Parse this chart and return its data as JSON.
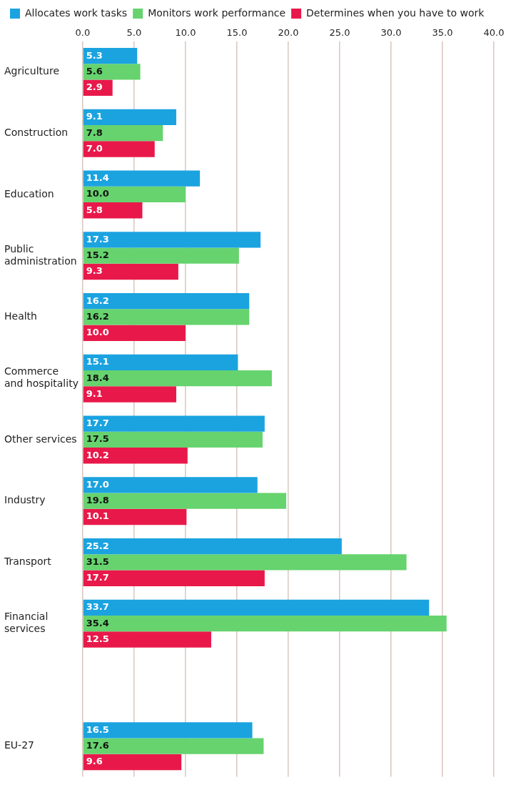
{
  "chart_data": {
    "type": "bar",
    "orientation": "horizontal",
    "legend": "top",
    "grid": "x",
    "categories": [
      "Agriculture",
      "Construction",
      "Education",
      "Public administration",
      "Health",
      "Commerce and hospitality",
      "Other services",
      "Industry",
      "Transport",
      "Financial services",
      null,
      "EU-27"
    ],
    "xlim": [
      0,
      40
    ],
    "xticks": [
      {
        "value": 0,
        "label": "0.0"
      },
      {
        "value": 5,
        "label": "5.0"
      },
      {
        "value": 10,
        "label": "10.0"
      },
      {
        "value": 15,
        "label": "15.0"
      },
      {
        "value": 20,
        "label": "20.0"
      },
      {
        "value": 25,
        "label": "25.0"
      },
      {
        "value": 30,
        "label": "30.0"
      },
      {
        "value": 35,
        "label": "35.0"
      },
      {
        "value": 40,
        "label": "40.0"
      }
    ],
    "series": [
      {
        "name": "Allocates work tasks",
        "color": "#1ba3e0",
        "values": [
          5.3,
          9.1,
          11.4,
          17.3,
          16.2,
          15.1,
          17.7,
          17.0,
          25.2,
          33.7,
          null,
          16.5
        ],
        "value_labels": [
          "5.3",
          "9.1",
          "11.4",
          "17.3",
          "16.2",
          "15.1",
          "17.7",
          "17.0",
          "25.2",
          "33.7",
          null,
          "16.5"
        ]
      },
      {
        "name": "Monitors work performance",
        "color": "#66d36e",
        "values": [
          5.6,
          7.8,
          10.0,
          15.2,
          16.2,
          18.4,
          17.5,
          19.8,
          31.5,
          35.4,
          null,
          17.6
        ],
        "value_labels": [
          "5.6",
          "7.8",
          "10.0",
          "15.2",
          "16.2",
          "18.4",
          "17.5",
          "19.8",
          "31.5",
          "35.4",
          null,
          "17.6"
        ]
      },
      {
        "name": "Determines when you have to work",
        "color": "#e8194a",
        "values": [
          2.9,
          7.0,
          5.8,
          9.3,
          10.0,
          9.1,
          10.2,
          10.1,
          17.7,
          12.5,
          null,
          9.6
        ],
        "value_labels": [
          "2.9",
          "7.0",
          "5.8",
          "9.3",
          "10.0",
          "9.1",
          "10.2",
          "10.1",
          "17.7",
          "12.5",
          null,
          "9.6"
        ]
      }
    ]
  }
}
